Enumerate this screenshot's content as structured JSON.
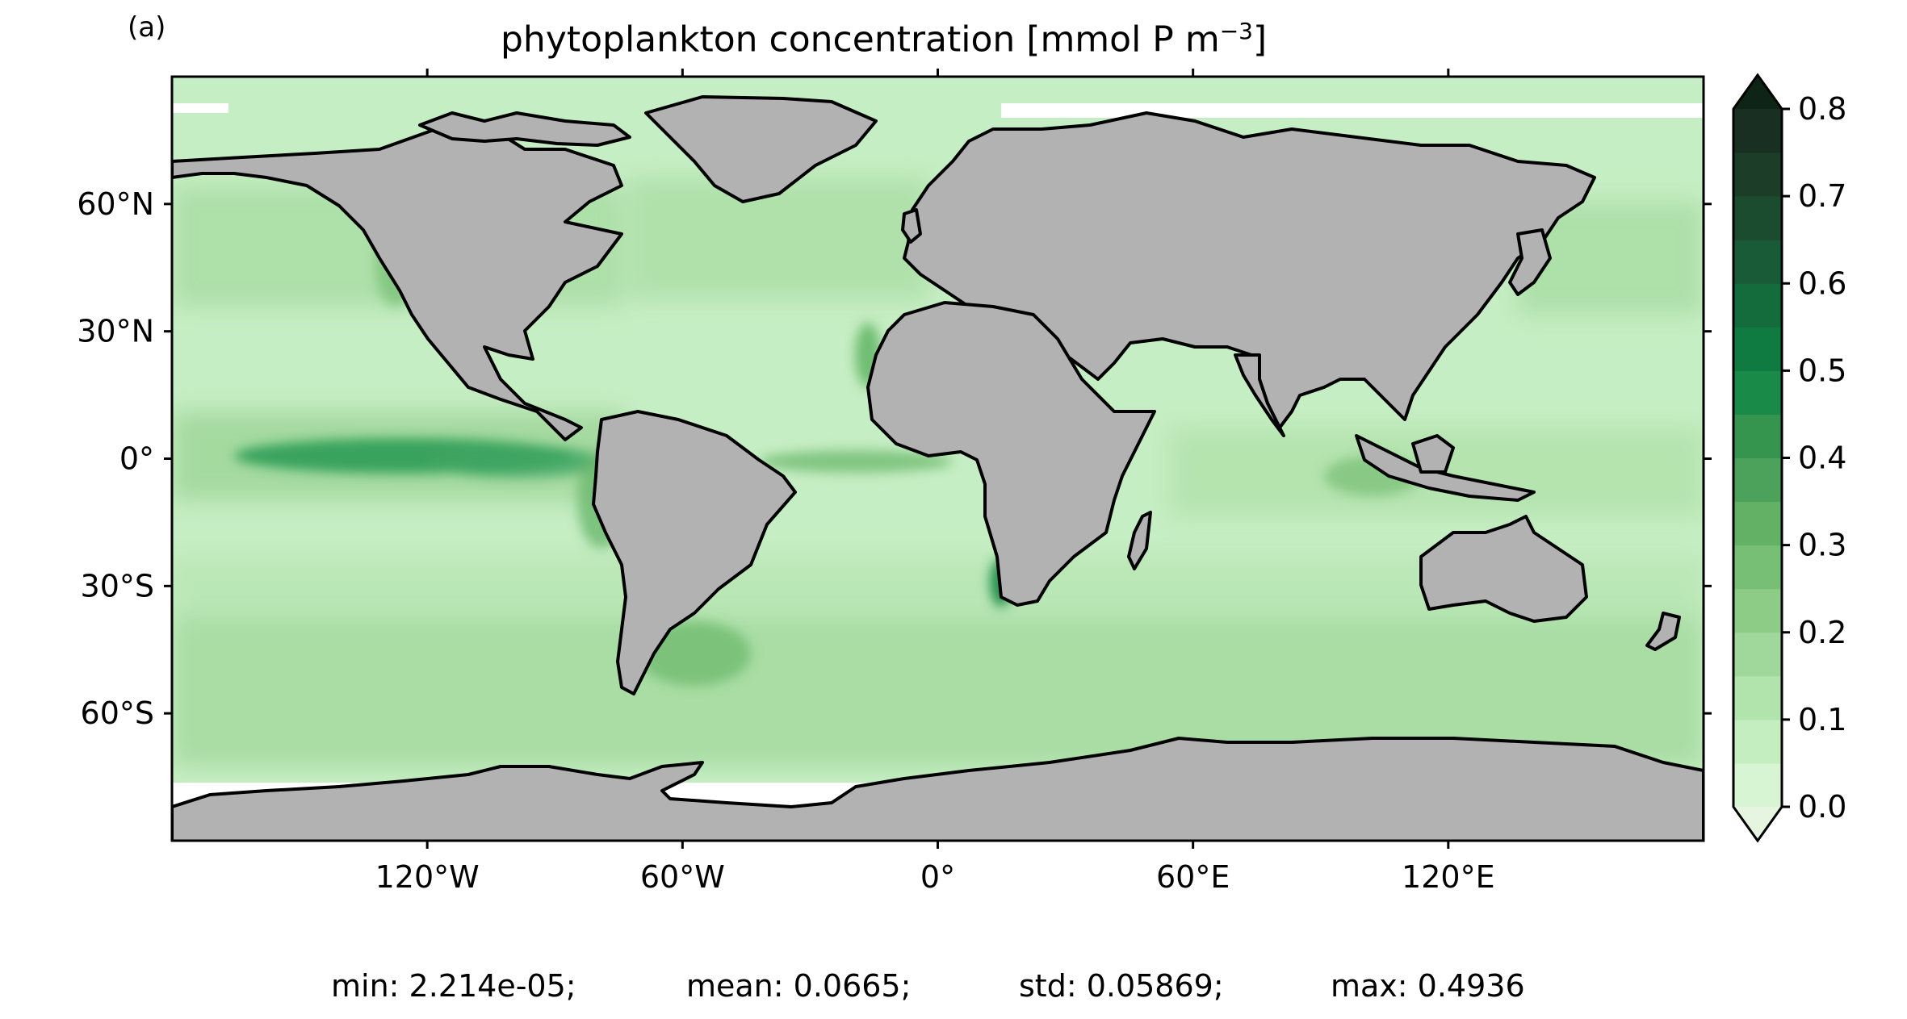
{
  "panel_label": "(a)",
  "title": {
    "main": "phytoplankton concentration [mmol P m",
    "superscript": "−3",
    "close": "]"
  },
  "map": {
    "projection": "PlateCarree",
    "lon_range": [
      -180,
      180
    ],
    "lat_range": [
      -90,
      90
    ],
    "x_ticks": [
      "120°W",
      "60°W",
      "0°",
      "60°E",
      "120°E"
    ],
    "y_ticks": [
      "60°N",
      "30°N",
      "0°",
      "30°S",
      "60°S"
    ],
    "land_color": "#b2b2b2",
    "ocean_base_color": "#c6eec4",
    "sea_ice_color": "#ffffff",
    "coastline_color": "#000000"
  },
  "colorbar": {
    "ticks": [
      "0.0",
      "0.1",
      "0.2",
      "0.3",
      "0.4",
      "0.5",
      "0.6",
      "0.7",
      "0.8"
    ],
    "range": [
      0.0,
      0.8
    ],
    "levels": 16,
    "extend": "both",
    "colors": [
      "#d7f5d3",
      "#c4edc0",
      "#b1e3ad",
      "#9fd89a",
      "#8ccc87",
      "#78bf76",
      "#62b165",
      "#4ca25a",
      "#35954f",
      "#198a48",
      "#0f7b40",
      "#146b3c",
      "#195b36",
      "#1c4c30",
      "#1c3e29",
      "#182f22"
    ],
    "under_color": "#e5f5e0",
    "over_color": "#0e2516"
  },
  "stats": {
    "min": "min: 2.214e-05;",
    "mean": "mean: 0.0665;",
    "std": "std: 0.05869;",
    "max": "max: 0.4936"
  }
}
